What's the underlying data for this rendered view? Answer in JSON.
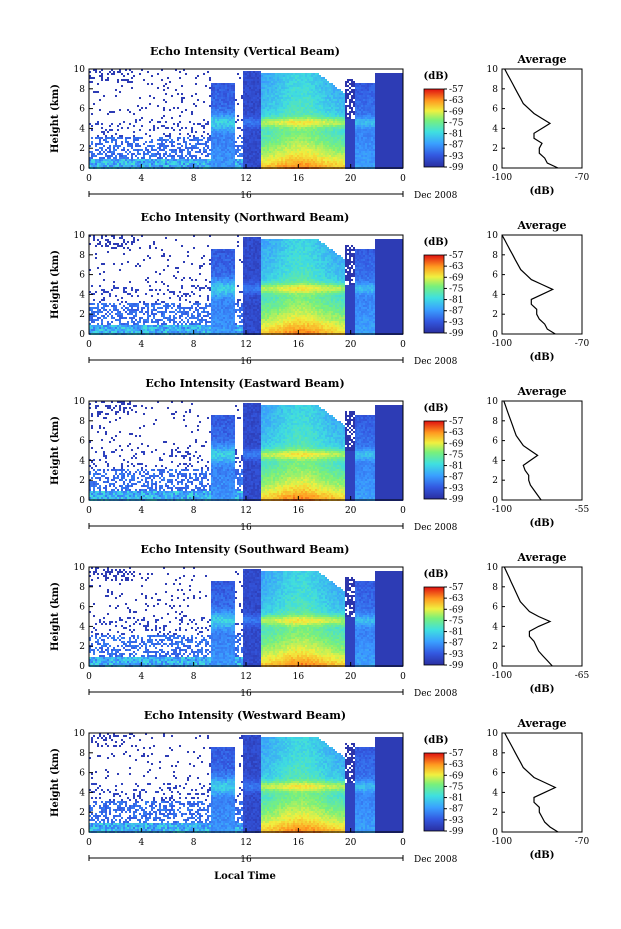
{
  "chart_data": {
    "type": "heatmap",
    "x_axis_label": "Local Time",
    "date_marker": "16",
    "date_label": "Dec 2008",
    "y_axis_label": "Height (km)",
    "colorbar_unit": "(dB)",
    "colorbar_ticks": [
      "-57",
      "-63",
      "-69",
      "-75",
      "-81",
      "-87",
      "-93",
      "-99"
    ],
    "average_title": "Average",
    "average_xlabel": "(dB)",
    "x_ticks": [
      "0",
      "4",
      "8",
      "12",
      "16",
      "20",
      "0"
    ],
    "y_ticks": [
      "0",
      "2",
      "4",
      "6",
      "8",
      "10"
    ],
    "avg_y_ticks": [
      "0",
      "2",
      "4",
      "6",
      "8",
      "10"
    ],
    "ylim": [
      0,
      10
    ],
    "xlim_hours": [
      0,
      24
    ],
    "zlim_db": [
      -99,
      -57
    ],
    "panels": [
      {
        "title": "Echo Intensity (Vertical Beam)",
        "avg_x_ticks": [
          "-100",
          "-70"
        ],
        "avg_xlim": [
          -100,
          -70
        ]
      },
      {
        "title": "Echo Intensity (Northward Beam)",
        "avg_x_ticks": [
          "-100",
          "-70"
        ],
        "avg_xlim": [
          -100,
          -70
        ]
      },
      {
        "title": "Echo Intensity (Eastward Beam)",
        "avg_x_ticks": [
          "-100",
          "-55"
        ],
        "avg_xlim": [
          -100,
          -55
        ]
      },
      {
        "title": "Echo Intensity (Southward Beam)",
        "avg_x_ticks": [
          "-100",
          "-65"
        ],
        "avg_xlim": [
          -100,
          -65
        ]
      },
      {
        "title": "Echo Intensity (Westward Beam)",
        "avg_x_ticks": [
          "-100",
          "-70"
        ],
        "avg_xlim": [
          -100,
          -70
        ]
      }
    ],
    "average_profile": {
      "height_km": [
        0,
        0.5,
        1,
        1.5,
        2,
        2.5,
        3,
        3.5,
        4,
        4.5,
        5,
        5.5,
        6,
        6.5,
        7,
        7.5,
        8,
        8.5,
        9,
        9.5,
        10
      ],
      "vertical_db": [
        -79,
        -83,
        -84,
        -86,
        -86,
        -85,
        -88,
        -88,
        -85,
        -82,
        -85,
        -88,
        -90,
        -92,
        -93,
        -94,
        -95,
        -96,
        -97,
        -98,
        -99
      ],
      "northward_db": [
        -80,
        -83,
        -84,
        -86,
        -87,
        -87,
        -89,
        -89,
        -85,
        -81,
        -85,
        -89,
        -91,
        -93,
        -94,
        -95,
        -96,
        -97,
        -98,
        -99,
        -100
      ],
      "eastward_db": [
        -78,
        -80,
        -82,
        -84,
        -85,
        -85,
        -87,
        -88,
        -84,
        -80,
        -84,
        -88,
        -90,
        -92,
        -93,
        -94,
        -95,
        -96,
        -97,
        -98,
        -99
      ],
      "southward_db": [
        -78,
        -80,
        -82,
        -84,
        -85,
        -86,
        -88,
        -88,
        -84,
        -79,
        -84,
        -88,
        -90,
        -92,
        -93,
        -94,
        -95,
        -96,
        -97,
        -98,
        -99
      ],
      "westward_db": [
        -79,
        -82,
        -84,
        -85,
        -86,
        -86,
        -88,
        -88,
        -84,
        -80,
        -84,
        -88,
        -90,
        -92,
        -93,
        -94,
        -95,
        -96,
        -97,
        -98,
        -99
      ]
    }
  }
}
